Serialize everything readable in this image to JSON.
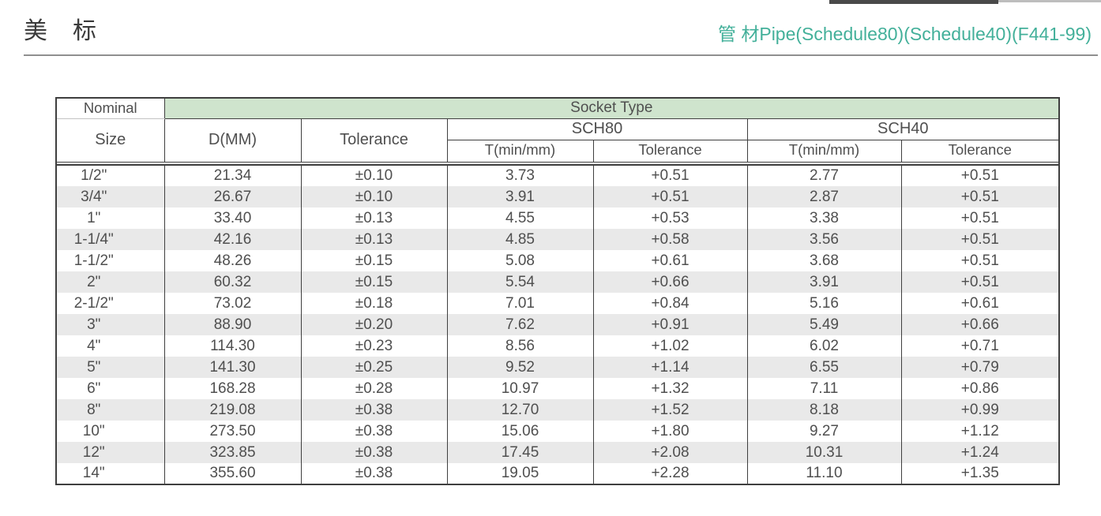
{
  "header": {
    "title_cn": "美　标",
    "subtitle": "管 材Pipe(Schedule80)(Schedule40)(F441-99)"
  },
  "colors": {
    "accent_teal": "#43b09a",
    "socket_band_green": "#cfe4cd",
    "stripe_gray": "#e9e9e9",
    "border_dark": "#3f3f3f"
  },
  "table": {
    "header": {
      "nominal": "Nominal",
      "size": "Size",
      "socket_type": "Socket Type",
      "d_mm": "D(MM)",
      "tolerance": "Tolerance",
      "sch80": "SCH80",
      "sch40": "SCH40",
      "t_min": "T(min/mm)",
      "sub_tolerance": "Tolerance"
    },
    "rows": [
      [
        "1/2\"",
        "21.34",
        "±0.10",
        "3.73",
        "+0.51",
        "2.77",
        "+0.51"
      ],
      [
        "3/4\"",
        "26.67",
        "±0.10",
        "3.91",
        "+0.51",
        "2.87",
        "+0.51"
      ],
      [
        "1\"",
        "33.40",
        "±0.13",
        "4.55",
        "+0.53",
        "3.38",
        "+0.51"
      ],
      [
        "1-1/4\"",
        "42.16",
        "±0.13",
        "4.85",
        "+0.58",
        "3.56",
        "+0.51"
      ],
      [
        "1-1/2\"",
        "48.26",
        "±0.15",
        "5.08",
        "+0.61",
        "3.68",
        "+0.51"
      ],
      [
        "2\"",
        "60.32",
        "±0.15",
        "5.54",
        "+0.66",
        "3.91",
        "+0.51"
      ],
      [
        "2-1/2\"",
        "73.02",
        "±0.18",
        "7.01",
        "+0.84",
        "5.16",
        "+0.61"
      ],
      [
        "3\"",
        "88.90",
        "±0.20",
        "7.62",
        "+0.91",
        "5.49",
        "+0.66"
      ],
      [
        "4\"",
        "114.30",
        "±0.23",
        "8.56",
        "+1.02",
        "6.02",
        "+0.71"
      ],
      [
        "5\"",
        "141.30",
        "±0.25",
        "9.52",
        "+1.14",
        "6.55",
        "+0.79"
      ],
      [
        "6\"",
        "168.28",
        "±0.28",
        "10.97",
        "+1.32",
        "7.11",
        "+0.86"
      ],
      [
        "8\"",
        "219.08",
        "±0.38",
        "12.70",
        "+1.52",
        "8.18",
        "+0.99"
      ],
      [
        "10\"",
        "273.50",
        "±0.38",
        "15.06",
        "+1.80",
        "9.27",
        "+1.12"
      ],
      [
        "12\"",
        "323.85",
        "±0.38",
        "17.45",
        "+2.08",
        "10.31",
        "+1.24"
      ],
      [
        "14\"",
        "355.60",
        "±0.38",
        "19.05",
        "+2.28",
        "11.10",
        "+1.35"
      ]
    ]
  }
}
